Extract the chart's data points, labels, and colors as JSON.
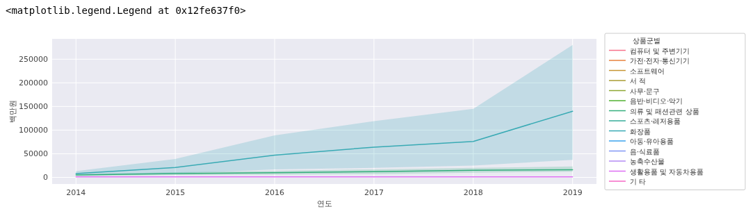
{
  "chart_data": {
    "type": "line",
    "annotations": [
      "<matplotlib.legend.Legend at 0x12fe637f0>"
    ],
    "xlabel": "연도",
    "ylabel": "백만원",
    "legend_title": "상품군별",
    "x": [
      2014,
      2015,
      2016,
      2017,
      2018,
      2019
    ],
    "xlim": [
      2013.76,
      2019.24
    ],
    "xticks": [
      2014,
      2015,
      2016,
      2017,
      2018,
      2019
    ],
    "ylim": [
      -14000,
      293000
    ],
    "yticks": [
      0,
      50000,
      100000,
      150000,
      200000,
      250000
    ],
    "grid": true,
    "legend": "right",
    "line_style": "solid",
    "marker": "none",
    "series": [
      {
        "name": "컴퓨터 및 주변기기",
        "color": "#f77189",
        "values": [
          null,
          null,
          null,
          null,
          null,
          null
        ]
      },
      {
        "name": "가전·전자·통신기기",
        "color": "#e7823c",
        "values": [
          null,
          null,
          null,
          null,
          null,
          null
        ]
      },
      {
        "name": "소프트웨어",
        "color": "#c69432",
        "values": [
          null,
          null,
          null,
          null,
          null,
          null
        ]
      },
      {
        "name": "서 적",
        "color": "#a89c32",
        "values": [
          null,
          null,
          null,
          null,
          null,
          null
        ]
      },
      {
        "name": "사무·문구",
        "color": "#8ca732",
        "values": [
          null,
          null,
          null,
          null,
          null,
          null
        ]
      },
      {
        "name": "음반·비디오·악기",
        "color": "#50b131",
        "values": [
          null,
          null,
          null,
          null,
          null,
          null
        ]
      },
      {
        "name": "의류 및 패션관련 상품",
        "color": "#34ae7c",
        "values": [
          5000,
          8000,
          10000,
          12000,
          15000,
          16000
        ],
        "lower": [
          3000,
          5000,
          6000,
          7000,
          10000,
          12000
        ],
        "upper": [
          7000,
          11000,
          14000,
          17000,
          20000,
          23000
        ]
      },
      {
        "name": "스포츠·레저용품",
        "color": "#36ad9a",
        "values": [
          null,
          null,
          null,
          null,
          null,
          null
        ]
      },
      {
        "name": "화장품",
        "color": "#38aab4",
        "values": [
          8000,
          21000,
          47000,
          64000,
          76000,
          140000
        ],
        "lower": [
          6000,
          8000,
          17000,
          20000,
          25000,
          37000
        ],
        "upper": [
          13000,
          39000,
          89000,
          119000,
          145000,
          280000
        ]
      },
      {
        "name": "아동·유아용품",
        "color": "#3ba3ec",
        "values": [
          null,
          null,
          null,
          null,
          null,
          null
        ]
      },
      {
        "name": "음·식료품",
        "color": "#8197f4",
        "values": [
          null,
          null,
          null,
          null,
          null,
          null
        ]
      },
      {
        "name": "농축수산물",
        "color": "#b48bf4",
        "values": [
          null,
          null,
          null,
          null,
          null,
          null
        ]
      },
      {
        "name": "생활용품 및 자동차용품",
        "color": "#dd6ef2",
        "values": [
          1000,
          1000,
          1000,
          1000,
          1000,
          1000
        ]
      },
      {
        "name": "기 타",
        "color": "#f668c4",
        "values": [
          null,
          null,
          null,
          null,
          null,
          null
        ]
      }
    ]
  }
}
